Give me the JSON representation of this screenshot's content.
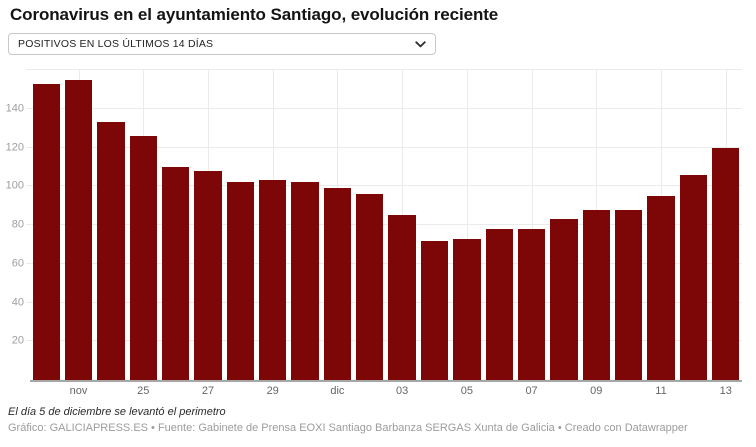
{
  "header": {
    "title": "Coronavirus en el ayuntamiento Santiago, evolución reciente",
    "dropdown": {
      "selected": "POSITIVOS EN LOS ÚLTIMOS 14 DÍAS"
    }
  },
  "chart_data": {
    "type": "bar",
    "title": "Coronavirus en el ayuntamiento Santiago, evolución reciente",
    "series_label": "POSITIVOS EN LOS ÚLTIMOS 14 DÍAS",
    "x_labels": [
      "",
      "nov",
      "",
      "25",
      "",
      "27",
      "",
      "29",
      "",
      "dic",
      "",
      "03",
      "",
      "05",
      "",
      "07",
      "",
      "09",
      "",
      "11",
      "",
      "13"
    ],
    "values": [
      153,
      155,
      133,
      126,
      110,
      108,
      102,
      103,
      102,
      99,
      96,
      85,
      72,
      73,
      78,
      78,
      83,
      88,
      88,
      95,
      106,
      120
    ],
    "xlabel": "",
    "ylabel": "",
    "ylim": [
      0,
      160
    ],
    "yticks": [
      20,
      40,
      60,
      80,
      100,
      120,
      140
    ],
    "grid": true,
    "legend_position": "none",
    "bar_color": "#7d0606",
    "gridline_color": "#ebebeb",
    "axis_line_color": "#a6a6a6",
    "ytick_label_color": "#9e9e9e",
    "xtick_label_color": "#666666"
  },
  "footer": {
    "note": "El día 5 de diciembre se levantó el perimetro",
    "credits": "Gráfico: GALICIAPRESS.ES • Fuente: Gabinete de Prensa EOXI Santiago Barbanza SERGAS Xunta de Galicia • Creado con Datawrapper"
  }
}
